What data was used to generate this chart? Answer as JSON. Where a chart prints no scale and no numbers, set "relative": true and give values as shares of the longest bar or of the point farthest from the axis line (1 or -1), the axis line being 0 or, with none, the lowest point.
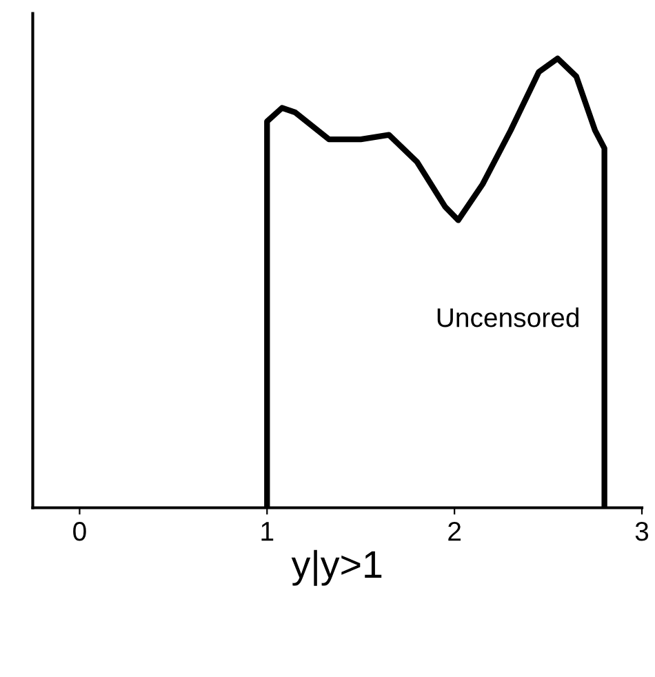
{
  "chart_data": {
    "type": "line",
    "relative": true,
    "xlabel": "y|y>1",
    "x": [
      1.0,
      1.0,
      1.08,
      1.15,
      1.33,
      1.5,
      1.65,
      1.8,
      1.95,
      2.02,
      2.15,
      2.3,
      2.45,
      2.55,
      2.65,
      2.75,
      2.8,
      2.8
    ],
    "series": [
      {
        "color": "#000000",
        "values": [
          0,
          0.86,
          0.89,
          0.88,
          0.82,
          0.82,
          0.83,
          0.77,
          0.67,
          0.64,
          0.72,
          0.84,
          0.97,
          1.0,
          0.96,
          0.84,
          0.8,
          0
        ]
      }
    ],
    "xlim": [
      -0.25,
      3.0
    ],
    "xticks": [
      0,
      1,
      2,
      3
    ],
    "annotations": [
      "Uncensored"
    ],
    "grid": false,
    "legend": false,
    "marker": "none",
    "line_style": "solid"
  }
}
